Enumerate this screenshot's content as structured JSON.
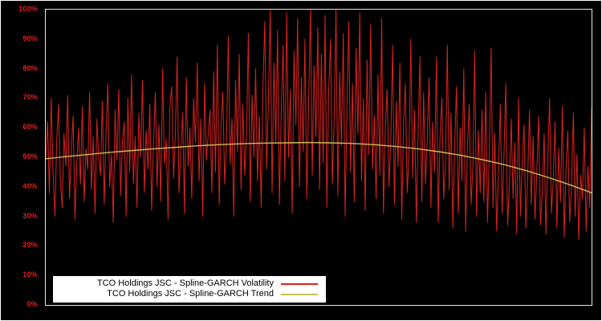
{
  "chart_data": {
    "type": "line",
    "title": "",
    "xlabel": "",
    "ylabel": "",
    "ylim": [
      0,
      100
    ],
    "grid": false,
    "background_color": "#000000",
    "plot_border_color": "#e8e8e8",
    "axis_label_color": "#ee1c1c",
    "legend_position": "bottom-left",
    "legend_background": "#ffffff",
    "yticks": [
      "0%",
      "10%",
      "20%",
      "30%",
      "40%",
      "50%",
      "60%",
      "70%",
      "80%",
      "90%",
      "100%"
    ],
    "ytick_values": [
      0,
      10,
      20,
      30,
      40,
      50,
      60,
      70,
      80,
      90,
      100
    ],
    "series": [
      {
        "name": "TCO Holdings JSC - Spline-GARCH Volatility",
        "color": "#dd2222",
        "stroke_width": 1,
        "values": [
          49,
          62,
          38,
          70,
          45,
          30,
          55,
          68,
          42,
          33,
          58,
          47,
          71,
          36,
          52,
          64,
          29,
          48,
          60,
          41,
          67,
          35,
          53,
          46,
          72,
          39,
          57,
          31,
          63,
          50,
          44,
          69,
          34,
          58,
          75,
          40,
          51,
          28,
          66,
          49,
          73,
          37,
          55,
          62,
          30,
          70,
          45,
          78,
          41,
          57,
          33,
          65,
          50,
          76,
          38,
          59,
          46,
          68,
          32,
          54,
          72,
          40,
          61,
          35,
          80,
          48,
          56,
          29,
          67,
          74,
          43,
          58,
          84,
          38,
          52,
          65,
          31,
          77,
          47,
          60,
          36,
          70,
          55,
          82,
          42,
          63,
          30,
          75,
          49,
          58,
          66,
          38,
          79,
          45,
          88,
          34,
          60,
          72,
          41,
          55,
          91,
          48,
          63,
          30,
          76,
          52,
          85,
          39,
          68,
          44,
          58,
          92,
          35,
          71,
          50,
          80,
          42,
          64,
          33,
          74,
          96,
          46,
          70,
          100,
          38,
          82,
          55,
          93,
          34,
          66,
          88,
          42,
          99,
          50,
          73,
          31,
          86,
          61,
          97,
          40,
          77,
          52,
          90,
          36,
          68,
          100,
          44,
          81,
          57,
          94,
          39,
          85,
          48,
          98,
          33,
          72,
          90,
          41,
          63,
          100,
          37,
          79,
          54,
          92,
          30,
          67,
          96,
          45,
          75,
          35,
          87,
          58,
          99,
          42,
          70,
          32,
          83,
          51,
          95,
          46,
          64,
          36,
          78,
          44,
          97,
          31,
          60,
          73,
          40,
          55,
          88,
          34,
          69,
          47,
          82,
          29,
          62,
          75,
          38,
          51,
          90,
          43,
          66,
          28,
          58,
          84,
          35,
          72,
          41,
          56,
          77,
          33,
          62,
          45,
          84,
          28,
          57,
          70,
          36,
          49,
          88,
          39,
          65,
          26,
          53,
          74,
          31,
          60,
          42,
          80,
          25,
          54,
          68,
          34,
          47,
          86,
          30,
          59,
          38,
          66,
          35,
          72,
          28,
          52,
          87,
          33,
          58,
          25,
          44,
          68,
          31,
          50,
          75,
          27,
          41,
          63,
          36,
          55,
          24,
          70,
          30,
          48,
          61,
          26,
          43,
          66,
          34,
          57,
          29,
          45,
          64,
          27,
          38,
          58,
          24,
          49,
          70,
          31,
          42,
          62,
          26,
          53,
          35,
          67,
          23,
          46,
          59,
          28,
          40,
          65,
          30,
          51,
          22,
          44,
          36,
          60,
          25,
          47,
          33,
          67
        ]
      },
      {
        "name": "TCO Holdings JSC - Spline-GARCH Trend",
        "color": "#c9bf55",
        "stroke_width": 1.4,
        "values": [
          49.5,
          50.3,
          51.0,
          51.7,
          52.3,
          52.9,
          53.4,
          53.9,
          54.3,
          54.6,
          54.8,
          54.9,
          55.0,
          54.9,
          54.7,
          54.3,
          53.7,
          52.9,
          51.9,
          50.7,
          49.2,
          47.5,
          45.5,
          43.2,
          40.7,
          38.0
        ]
      }
    ]
  }
}
